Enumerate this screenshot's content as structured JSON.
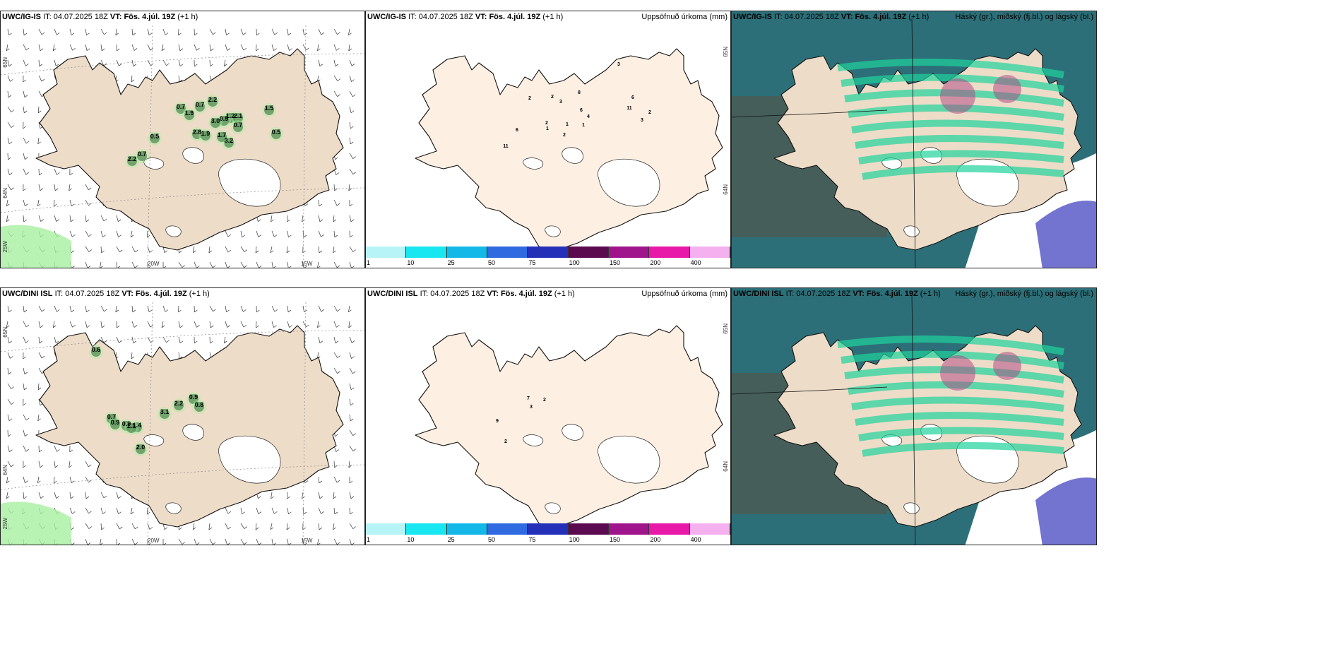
{
  "panels": [
    {
      "id": "p1",
      "model": "UWC/IG-IS",
      "it_label": "IT:",
      "it_value": "04.07.2025 18Z",
      "vt_label": "VT:",
      "vt_value": "Fös. 4.júl. 19Z",
      "offset": "(+1 h)",
      "right_label": ""
    },
    {
      "id": "p2",
      "model": "UWC/IG-IS",
      "it_label": "IT:",
      "it_value": "04.07.2025 18Z",
      "vt_label": "VT:",
      "vt_value": "Fös. 4.júl. 19Z",
      "offset": "(+1 h)",
      "right_label": "Uppsöfnuð úrkoma (mm)"
    },
    {
      "id": "p3",
      "model": "UWC/IG-IS",
      "it_label": "IT:",
      "it_value": "04.07.2025 18Z",
      "vt_label": "VT:",
      "vt_value": "Fös. 4.júl. 19Z",
      "offset": "(+1 h)",
      "right_label": "Háský (gr.), miðský (fj.bl.) og lágský (bl.)"
    },
    {
      "id": "p4",
      "model": "UWC/DINI ISL",
      "it_label": "IT:",
      "it_value": "04.07.2025 18Z",
      "vt_label": "VT:",
      "vt_value": "Fös. 4.júl. 19Z",
      "offset": "(+1 h)",
      "right_label": ""
    },
    {
      "id": "p5",
      "model": "UWC/DINI ISL",
      "it_label": "IT:",
      "it_value": "04.07.2025 18Z",
      "vt_label": "VT:",
      "vt_value": "Fös. 4.júl. 19Z",
      "offset": "(+1 h)",
      "right_label": "Uppsöfnuð úrkoma (mm)"
    },
    {
      "id": "p6",
      "model": "UWC/DINI ISL",
      "it_label": "IT:",
      "it_value": "04.07.2025 18Z",
      "vt_label": "VT:",
      "vt_value": "Fös. 4.júl. 19Z",
      "offset": "(+1 h)",
      "right_label": "Háský (gr.), miðský (fj.bl.) og lágský (bl.)"
    }
  ],
  "axes": {
    "lat_top": "65N",
    "lat_bottom": "64N",
    "lon_left": "25W",
    "lon_mid": "20W",
    "lon_right": "15W"
  },
  "colorbar": {
    "ticks": [
      "1",
      "10",
      "25",
      "50",
      "75",
      "100",
      "150",
      "200",
      "400"
    ],
    "colors": [
      "#b7f4f7",
      "#18e6f0",
      "#14b8e8",
      "#2f6ae0",
      "#2430b8",
      "#5c0a50",
      "#a0148c",
      "#e818a8",
      "#f5b0f0"
    ]
  },
  "precip_labels": {
    "p1": [
      "0.7",
      "1.9",
      "0.7",
      "2.2",
      "1.2",
      "1.5",
      "0.9",
      "3.0",
      "2.1",
      "0.7",
      "0.5",
      "2.8",
      "1.9",
      "3.2",
      "0.5",
      "2.2",
      "0.7",
      "1.7"
    ],
    "p2": [
      "3",
      "2",
      "2",
      "3",
      "8",
      "6",
      "6",
      "4",
      "11",
      "2",
      "2",
      "1",
      "1",
      "1",
      "3",
      "2",
      "6",
      "11"
    ],
    "p4": [
      "0.6",
      "0.7",
      "0.9",
      "0.9",
      "1.4",
      "1.1",
      "3.1",
      "2.2",
      "0.9",
      "0.8",
      "2.0"
    ],
    "p5": [
      "7",
      "2",
      "3",
      "9",
      "2"
    ]
  },
  "colors": {
    "land": "#eddcc8",
    "land_p2": "#fdf0e2",
    "precip_green": "#a8f0a0",
    "precip_dark": "#1a3a1a",
    "cloud_high": "#1fd39b",
    "cloud_mid": "#2a6f7a",
    "cloud_low": "#5a5ac8"
  }
}
